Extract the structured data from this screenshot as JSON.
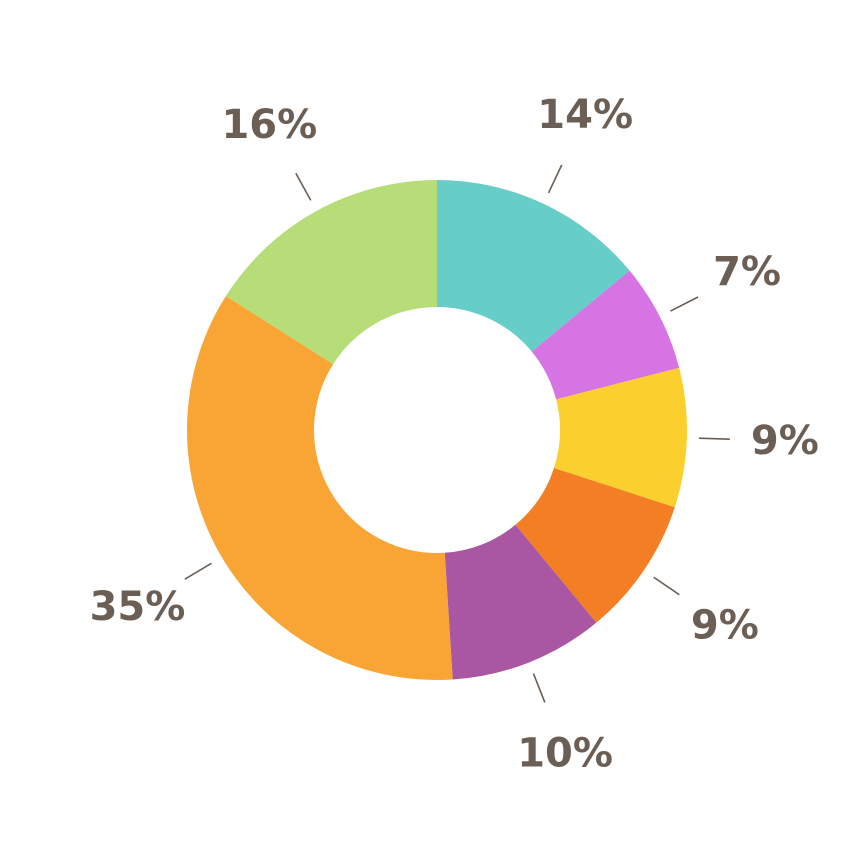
{
  "chart_data": {
    "type": "pie",
    "variant": "donut",
    "title": "",
    "slices": [
      {
        "label": "14%",
        "value": 14,
        "color": "#66CDC8"
      },
      {
        "label": "7%",
        "value": 7,
        "color": "#D674E4"
      },
      {
        "label": "9%",
        "value": 9,
        "color": "#FBCF2E"
      },
      {
        "label": "9%",
        "value": 9,
        "color": "#F47E23"
      },
      {
        "label": "10%",
        "value": 10,
        "color": "#A957A3"
      },
      {
        "label": "35%",
        "value": 35,
        "color": "#F9A535"
      },
      {
        "label": "16%",
        "value": 16,
        "color": "#B6DD78"
      }
    ],
    "legend": "none",
    "grid": false
  }
}
